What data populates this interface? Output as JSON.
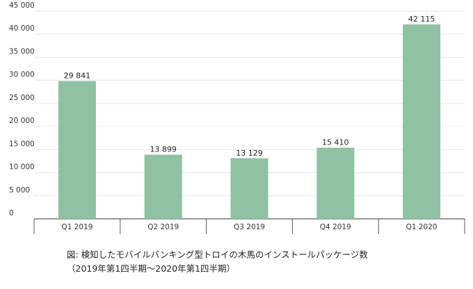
{
  "chart_data": {
    "type": "bar",
    "categories": [
      "Q1 2019",
      "Q2 2019",
      "Q3 2019",
      "Q4 2019",
      "Q1 2020"
    ],
    "values": [
      29841,
      13899,
      13129,
      15410,
      42115
    ],
    "value_labels": [
      "29 841",
      "13 899",
      "13 129",
      "15 410",
      "42 115"
    ],
    "ylim": [
      0,
      45000
    ],
    "yticks": [
      0,
      5000,
      10000,
      15000,
      20000,
      25000,
      30000,
      35000,
      40000,
      45000
    ],
    "ytick_labels": [
      "0",
      "5 000",
      "10 000",
      "15 000",
      "20 000",
      "25 000",
      "30 000",
      "35 000",
      "40 000",
      "45 000"
    ],
    "grid": true,
    "bar_color": "#8fc1a2",
    "title": "",
    "xlabel": "",
    "ylabel": ""
  },
  "caption": {
    "line1": "図: 検知したモバイルバンキング型トロイの木馬のインストールパッケージ数",
    "line2": "（2019年第1四半期〜2020年第1四半期）"
  }
}
